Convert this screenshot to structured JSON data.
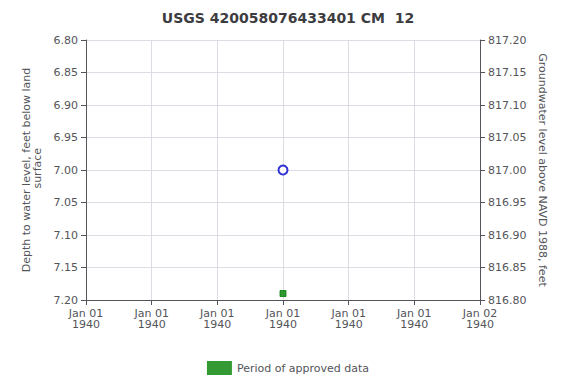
{
  "chart_data": {
    "type": "scatter",
    "title": "USGS 420058076433401 CM  12",
    "categories": [
      "Jan 01\n1940",
      "Jan 01\n1940",
      "Jan 01\n1940",
      "Jan 01\n1940",
      "Jan 01\n1940",
      "Jan 01\n1940",
      "Jan 02\n1940"
    ],
    "ylabel": "Depth to water level, feet below land\n surface",
    "y2label": "Groundwater level above NAVD 1988, feet",
    "ylim": [
      7.2,
      6.8
    ],
    "yticks": [
      {
        "value": 6.8,
        "label": "6.80"
      },
      {
        "value": 6.85,
        "label": "6.85"
      },
      {
        "value": 6.9,
        "label": "6.90"
      },
      {
        "value": 6.95,
        "label": "6.95"
      },
      {
        "value": 7.0,
        "label": "7.00"
      },
      {
        "value": 7.05,
        "label": "7.05"
      },
      {
        "value": 7.1,
        "label": "7.10"
      },
      {
        "value": 7.15,
        "label": "7.15"
      },
      {
        "value": 7.2,
        "label": "7.20"
      }
    ],
    "y2lim": [
      816.8,
      817.2
    ],
    "y2ticks": [
      {
        "value": 816.8,
        "label": "816.80"
      },
      {
        "value": 816.85,
        "label": "816.85"
      },
      {
        "value": 816.9,
        "label": "816.90"
      },
      {
        "value": 816.95,
        "label": "816.95"
      },
      {
        "value": 817.0,
        "label": "817.00"
      },
      {
        "value": 817.05,
        "label": "817.05"
      },
      {
        "value": 817.1,
        "label": "817.10"
      },
      {
        "value": 817.15,
        "label": "817.15"
      },
      {
        "value": 817.2,
        "label": "817.20"
      }
    ],
    "series": [
      {
        "color": "#0000cc",
        "marker": "open_circle",
        "values": [
          null,
          null,
          null,
          7.0,
          null,
          null,
          null
        ]
      },
      {
        "name": "Period of approved data",
        "color": "#008000",
        "marker": "square",
        "values": [
          null,
          null,
          null,
          7.19,
          null,
          null,
          null
        ]
      }
    ],
    "grid": true,
    "legend": "bottom"
  }
}
